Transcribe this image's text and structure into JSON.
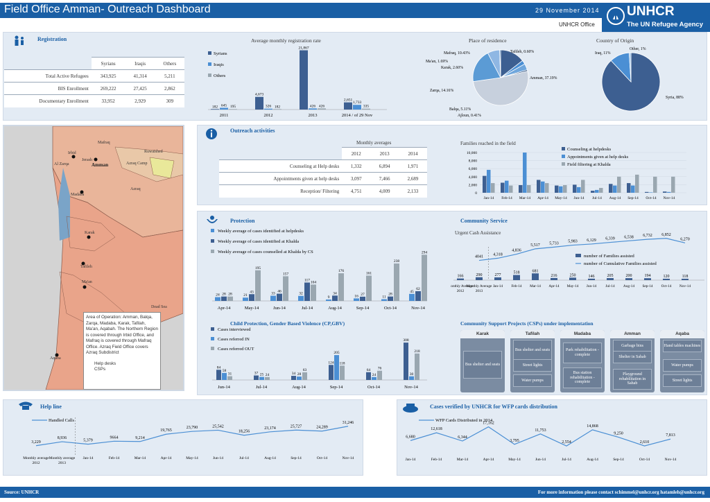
{
  "header": {
    "title": "Field Office Amman- Outreach Dashboard",
    "date": "29 November 2014",
    "office": "UNHCR Office",
    "logo_name": "UNHCR",
    "logo_tag": "The UN Refugee Agency"
  },
  "registration": {
    "title": "Registration",
    "cols": [
      "Syrians",
      "Iraqis",
      "Others"
    ],
    "rows": [
      {
        "label": "Total Active Refugees",
        "v": [
          "343,925",
          "41,314",
          "5,211"
        ]
      },
      {
        "label": "BIS Enrollment",
        "v": [
          "269,222",
          "27,425",
          "2,862"
        ]
      },
      {
        "label": "Documentary Enrollment",
        "v": [
          "33,952",
          "2,929",
          "309"
        ]
      }
    ]
  },
  "avg_reg": {
    "title": "Average monthly registration rate",
    "legend": [
      "Syrians",
      "Iraqis",
      "Others"
    ],
    "categories": [
      "2011",
      "2012",
      "2013",
      "2014 / of 29 Nov"
    ],
    "syrians": [
      182,
      4673,
      21867,
      2651
    ],
    "iraqis": [
      645,
      326,
      426,
      1733
    ],
    "others": [
      195,
      182,
      426,
      335
    ],
    "labels": {
      "syrians": [
        "182",
        "4,673",
        "21,867",
        "2,651"
      ],
      "iraqis": [
        "645",
        "326",
        "426",
        "1,733"
      ],
      "others": [
        "195",
        "182",
        "426",
        "335"
      ]
    }
  },
  "residence": {
    "title": "Place of residence",
    "slices": [
      {
        "label": "Mafraq, 10.43%",
        "v": 10.43
      },
      {
        "label": "Ma'an, 1.69%",
        "v": 1.69
      },
      {
        "label": "Karak, 2.60%",
        "v": 2.6
      },
      {
        "label": "Tafileh, 0.60%",
        "v": 0.6
      },
      {
        "label": "Amman, 37.19%",
        "v": 37.19
      },
      {
        "label": "Zarqa, 14.16%",
        "v": 14.16
      },
      {
        "label": "Balqa, 5.11%",
        "v": 5.11
      },
      {
        "label": "Ajloun, 0.41%",
        "v": 0.41
      }
    ]
  },
  "origin": {
    "title": "Country of Origin",
    "slices": [
      {
        "label": "Syria, 88%",
        "v": 88
      },
      {
        "label": "Iraq, 11%",
        "v": 11
      },
      {
        "label": "Other, 1%",
        "v": 1
      }
    ]
  },
  "map": {
    "labels": [
      "Irbid",
      "Mafraq",
      "Jerash",
      "Ruwaished",
      "Al Zarqa",
      "Amman",
      "Azraq Camp",
      "Madaba",
      "Karak",
      "Tafileh",
      "Ma'an",
      "Aqaba",
      "Azraq",
      "Dead Sea"
    ],
    "note": "Area of Operation: Amman, Balqa, Zarqa, Madaba, Karak, Tafilah, Ma'an, Aqabah. The Northern Region is covered through Irbid Office, and Mafraq is covered through Mafraq Office. Azraq Field Office covers Azraq Subdistrict",
    "legend_help": "Help desks",
    "legend_csp": "CSPs"
  },
  "outreach": {
    "title": "Outreach activities",
    "table_title": "Monthly averages",
    "cols": [
      "2012",
      "2013",
      "2014"
    ],
    "rows": [
      {
        "label": "Counseling at Help desks",
        "v": [
          "1,332",
          "6,894",
          "1,971"
        ]
      },
      {
        "label": "Appointments given at help desks",
        "v": [
          "3,097",
          "7,466",
          "2,689"
        ]
      },
      {
        "label": "Reception/ Filtering",
        "v": [
          "4,751",
          "4,009",
          "2,133"
        ]
      }
    ]
  },
  "families": {
    "title": "Families reached in the field",
    "legend": [
      "Counseling at helpdesks",
      "Appointments given at help desks",
      "Field filtering at Khalda"
    ],
    "categories": [
      "Jan-14",
      "Feb-14",
      "Mar-14",
      "Apr-14",
      "May-14",
      "Jun-14",
      "Jul-14",
      "Aug-14",
      "Sep-14",
      "Oct-14",
      "Nov-14"
    ],
    "counseling": [
      4200,
      2500,
      1900,
      3200,
      1800,
      2000,
      500,
      2200,
      2400,
      200,
      300
    ],
    "appointments": [
      5700,
      3000,
      10000,
      2800,
      1600,
      1400,
      700,
      1800,
      1800,
      100,
      200
    ],
    "filtering": [
      2400,
      1800,
      1900,
      2400,
      1900,
      3200,
      1200,
      4000,
      4500,
      4000,
      4000
    ],
    "yticks": [
      "10,000",
      "8,000",
      "6,000",
      "4,000",
      "2,000",
      "0"
    ]
  },
  "protection": {
    "title": "Protection",
    "legend": [
      "Weekly average of cases identified at helpdesks",
      "Weekly average of cases identified at Khalda",
      "Weekly average of cases counselled at Khalda by CS"
    ],
    "categories": [
      "Apr-14",
      "May-14",
      "Jun-14",
      "Jul-14",
      "Aug-14",
      "Sep-14",
      "Oct-14",
      "Nov-14"
    ],
    "a": [
      24,
      21,
      33,
      32,
      9,
      16,
      11,
      45
    ],
    "b": [
      28,
      43,
      46,
      117,
      34,
      27,
      28,
      62
    ],
    "c": [
      28,
      195,
      157,
      104,
      176,
      161,
      238,
      294
    ]
  },
  "cp": {
    "title": "Child Protection, Gender Based Violence (CP,GBV)",
    "legend": [
      "Cases interviewed",
      "Cases referred IN",
      "Cases referred OUT"
    ],
    "categories": [
      "Jun-14",
      "Jul-14",
      "Aug-14",
      "Sep-14",
      "Oct-14",
      "Nov-14"
    ],
    "a": [
      84,
      37,
      34,
      124,
      64,
      308
    ],
    "b": [
      58,
      25,
      28,
      205,
      24,
      30
    ],
    "c": [
      31,
      24,
      63,
      118,
      76,
      218
    ]
  },
  "community": {
    "title": "Community Service",
    "sub": "Urgent Cash Assistance",
    "legend": [
      "number of Families assisted",
      "number of Cumulative Families assisted"
    ],
    "categories": [
      "Monthly Average 2012",
      "Monthly Average 2013",
      "Jan-14",
      "Feb-14",
      "Mar-14",
      "Apr-14",
      "May-14",
      "Jun-14",
      "Jul-14",
      "Aug-14",
      "Sep-14",
      "Oct-14",
      "Nov-14"
    ],
    "bars": [
      "166",
      "290",
      "277",
      "518",
      "681",
      "216",
      "250",
      "146",
      "205",
      "200",
      "194",
      "120",
      "118"
    ],
    "line": [
      "4041",
      "4,318",
      "4,836",
      "5,517",
      "5,733",
      "5,983",
      "6,129",
      "6,339",
      "6,538",
      "6,732",
      "6,852",
      "6,270"
    ]
  },
  "csp": {
    "title": "Community Support Projects (CSPs) under implementation",
    "cols": [
      {
        "name": "Karak",
        "items": [
          "Bus shelter and seats"
        ]
      },
      {
        "name": "Tafilah",
        "items": [
          "Bus shelter and seats",
          "Street lights",
          "Water pumps"
        ]
      },
      {
        "name": "Madaba",
        "items": [
          "Park rehabilitation - complete",
          "Bus station rehabilitation - complete"
        ]
      },
      {
        "name": "Amman",
        "items": [
          "Garbage bins",
          "Shelter in Sahab",
          "Playground rehabilitation in Sahab"
        ]
      },
      {
        "name": "Aqaba",
        "items": [
          "Hand tables machines",
          "Water pumps",
          "Street lights"
        ]
      }
    ]
  },
  "helpline": {
    "title": "Help line",
    "legend": "Handled Calls",
    "categories": [
      "Monthly average 2012",
      "Monthly average 2013",
      "Jan-14",
      "Feb-14",
      "Mar-14",
      "Apr-14",
      "May-14",
      "Jun-14",
      "Jul-14",
      "Aug-14",
      "Sep-14",
      "Oct-14",
      "Nov-14"
    ],
    "values": [
      3229,
      8936,
      5379,
      9664,
      9214,
      19765,
      23790,
      25542,
      18256,
      23174,
      25727,
      24289,
      31246
    ],
    "labels": [
      "3,229",
      "8,936",
      "5,379",
      "9664",
      "9,214",
      "19,765",
      "23,790",
      "25,542",
      "18,256",
      "23,174",
      "25,727",
      "24,289",
      "31,246"
    ]
  },
  "wfp": {
    "title": "Cases verified by UNHCR for WFP cards distribution",
    "legend": "WFP Cards Distributed in 2014",
    "categories": [
      "Jan-14",
      "Feb-14",
      "Mar-14",
      "Apr-14",
      "May-14",
      "Jun-14",
      "Jul-14",
      "Aug-14",
      "Sep-14",
      "Oct-14",
      "Nov-14"
    ],
    "values": [
      6680,
      12618,
      6344,
      17162,
      3795,
      11753,
      2554,
      14868,
      9250,
      2610,
      7813
    ],
    "labels": [
      "6,680",
      "12,618",
      "6,344",
      "17,162",
      "3,795",
      "11,753",
      "2,554",
      "14,868",
      "9,250",
      "2,610",
      "7,813"
    ]
  },
  "footer": {
    "source": "Source: UNHCR",
    "contact": "For more information please contact schimmel@unhcr.org  hatamleh@unhcr.org"
  },
  "colors": {
    "dark": "#3d5f91",
    "mid": "#4b8fd4",
    "light": "#9aa7b0",
    "brand": "#1a5fa5"
  }
}
